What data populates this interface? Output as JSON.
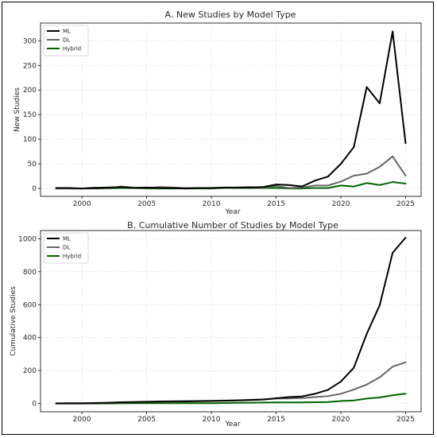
{
  "chart_data": [
    {
      "type": "line",
      "title": "A. New Studies by Model Type",
      "xlabel": "Year",
      "ylabel": "New Studies",
      "x": [
        1998,
        1999,
        2000,
        2001,
        2002,
        2003,
        2004,
        2005,
        2006,
        2007,
        2008,
        2009,
        2010,
        2011,
        2012,
        2013,
        2014,
        2015,
        2016,
        2017,
        2018,
        2019,
        2020,
        2021,
        2022,
        2023,
        2024,
        2025
      ],
      "xticks": [
        2000,
        2005,
        2010,
        2015,
        2020,
        2025
      ],
      "yticks": [
        0,
        50,
        100,
        150,
        200,
        250,
        300
      ],
      "xlim": [
        1996.8,
        2026.2
      ],
      "ylim": [
        -16,
        336
      ],
      "grid": true,
      "legend": "top-left",
      "series": [
        {
          "name": "ML",
          "color": "#000000",
          "values": [
            1,
            1,
            0,
            1,
            2,
            3,
            1,
            2,
            1,
            1,
            0,
            1,
            1,
            2,
            2,
            2,
            3,
            8,
            7,
            4,
            16,
            24,
            50,
            84,
            206,
            173,
            319,
            92
          ]
        },
        {
          "name": "DL",
          "color": "#666666",
          "values": [
            0,
            0,
            0,
            2,
            0,
            4,
            2,
            1,
            3,
            2,
            1,
            1,
            1,
            1,
            2,
            3,
            2,
            5,
            1,
            2,
            6,
            6,
            14,
            26,
            30,
            44,
            65,
            26
          ]
        },
        {
          "name": "Hybrid",
          "color": "#006400",
          "values": [
            0,
            0,
            0,
            0,
            0,
            1,
            1,
            0,
            0,
            0,
            0,
            0,
            0,
            1,
            1,
            1,
            1,
            1,
            0,
            0,
            1,
            1,
            6,
            4,
            11,
            7,
            13,
            10
          ]
        }
      ]
    },
    {
      "type": "line",
      "title": "B. Cumulative Number of Studies by Model Type",
      "xlabel": "Year",
      "ylabel": "Cumulative Studies",
      "x": [
        1998,
        1999,
        2000,
        2001,
        2002,
        2003,
        2004,
        2005,
        2006,
        2007,
        2008,
        2009,
        2010,
        2011,
        2012,
        2013,
        2014,
        2015,
        2016,
        2017,
        2018,
        2019,
        2020,
        2021,
        2022,
        2023,
        2024,
        2025
      ],
      "xticks": [
        2000,
        2005,
        2010,
        2015,
        2020,
        2025
      ],
      "yticks": [
        0,
        200,
        400,
        600,
        800,
        1000
      ],
      "xlim": [
        1996.8,
        2026.2
      ],
      "ylim": [
        -50,
        1050
      ],
      "grid": true,
      "legend": "top-left",
      "series": [
        {
          "name": "ML",
          "color": "#000000",
          "values": [
            1,
            2,
            2,
            3,
            5,
            8,
            9,
            11,
            12,
            13,
            13,
            14,
            15,
            17,
            19,
            21,
            24,
            32,
            39,
            43,
            59,
            83,
            133,
            217,
            423,
            596,
            915,
            1007
          ]
        },
        {
          "name": "DL",
          "color": "#666666",
          "values": [
            0,
            0,
            0,
            2,
            2,
            6,
            8,
            9,
            12,
            14,
            15,
            16,
            17,
            18,
            20,
            23,
            25,
            30,
            31,
            33,
            39,
            45,
            59,
            85,
            115,
            159,
            224,
            250
          ]
        },
        {
          "name": "Hybrid",
          "color": "#006400",
          "values": [
            0,
            0,
            0,
            0,
            0,
            1,
            2,
            2,
            2,
            2,
            2,
            2,
            2,
            3,
            4,
            5,
            6,
            7,
            7,
            7,
            8,
            9,
            15,
            19,
            30,
            37,
            50,
            60
          ]
        }
      ]
    }
  ]
}
